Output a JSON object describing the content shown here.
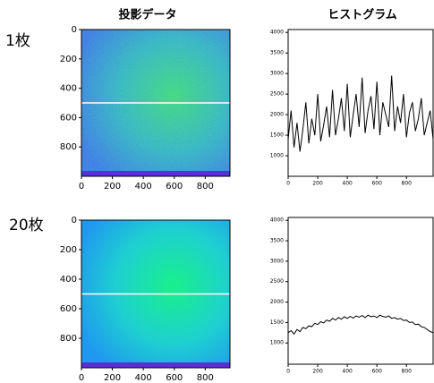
{
  "column_titles": [
    "投影データ",
    "ヒストグラム"
  ],
  "row_labels": [
    "1枚",
    "20枚"
  ],
  "chart_data": [
    {
      "type": "heatmap",
      "xlim": [
        0,
        960
      ],
      "ylim": [
        1000,
        0
      ],
      "xticks": [
        0,
        200,
        400,
        600,
        800
      ],
      "yticks": [
        0,
        200,
        400,
        600,
        800
      ],
      "profile_row": 500
    },
    {
      "type": "line",
      "color": "#000000",
      "x": [
        0,
        20,
        40,
        60,
        80,
        100,
        120,
        140,
        160,
        180,
        200,
        220,
        240,
        260,
        280,
        300,
        320,
        340,
        360,
        380,
        400,
        420,
        440,
        460,
        480,
        500,
        520,
        540,
        560,
        580,
        600,
        620,
        640,
        660,
        680,
        700,
        720,
        740,
        760,
        780,
        800,
        820,
        840,
        860,
        880,
        900,
        920,
        940,
        960,
        980
      ],
      "values": [
        1400,
        2100,
        1200,
        1800,
        1100,
        1650,
        2300,
        1300,
        1900,
        1500,
        2500,
        1350,
        1750,
        2200,
        1450,
        2600,
        1500,
        1900,
        2400,
        1600,
        2750,
        1450,
        2000,
        2500,
        1700,
        2900,
        1550,
        2100,
        2450,
        1650,
        2800,
        1500,
        2300,
        2000,
        1700,
        2950,
        1600,
        2200,
        1800,
        2500,
        1450,
        2050,
        2300,
        1600,
        1900,
        2400,
        1500,
        1800,
        2100,
        1400
      ],
      "xlim": [
        0,
        980
      ],
      "ylim": [
        500,
        4070
      ],
      "xticks": [
        0,
        200,
        400,
        600,
        800
      ],
      "yticks": [
        1000,
        1500,
        2000,
        2500,
        3000,
        3500,
        4000
      ]
    },
    {
      "type": "heatmap",
      "xlim": [
        0,
        960
      ],
      "ylim": [
        1000,
        0
      ],
      "xticks": [
        0,
        200,
        400,
        600,
        800
      ],
      "yticks": [
        0,
        200,
        400,
        600,
        800
      ],
      "profile_row": 500
    },
    {
      "type": "line",
      "color": "#000000",
      "x": [
        0,
        20,
        40,
        60,
        80,
        100,
        120,
        140,
        160,
        180,
        200,
        220,
        240,
        260,
        280,
        300,
        320,
        340,
        360,
        380,
        400,
        420,
        440,
        460,
        480,
        500,
        520,
        540,
        560,
        580,
        600,
        620,
        640,
        660,
        680,
        700,
        720,
        740,
        760,
        780,
        800,
        820,
        840,
        860,
        880,
        900,
        920,
        940,
        960,
        980
      ],
      "values": [
        1250,
        1300,
        1220,
        1330,
        1280,
        1380,
        1350,
        1420,
        1400,
        1480,
        1450,
        1520,
        1490,
        1560,
        1530,
        1600,
        1560,
        1620,
        1580,
        1640,
        1600,
        1650,
        1610,
        1660,
        1630,
        1670,
        1620,
        1680,
        1640,
        1660,
        1620,
        1680,
        1650,
        1630,
        1660,
        1600,
        1620,
        1580,
        1600,
        1550,
        1560,
        1500,
        1510,
        1450,
        1460,
        1400,
        1380,
        1330,
        1280,
        1250
      ],
      "xlim": [
        0,
        980
      ],
      "ylim": [
        480,
        4070
      ],
      "xticks": [
        0,
        200,
        400,
        600,
        800
      ],
      "yticks": [
        1000,
        1500,
        2000,
        2500,
        3000,
        3500,
        4000
      ]
    }
  ]
}
